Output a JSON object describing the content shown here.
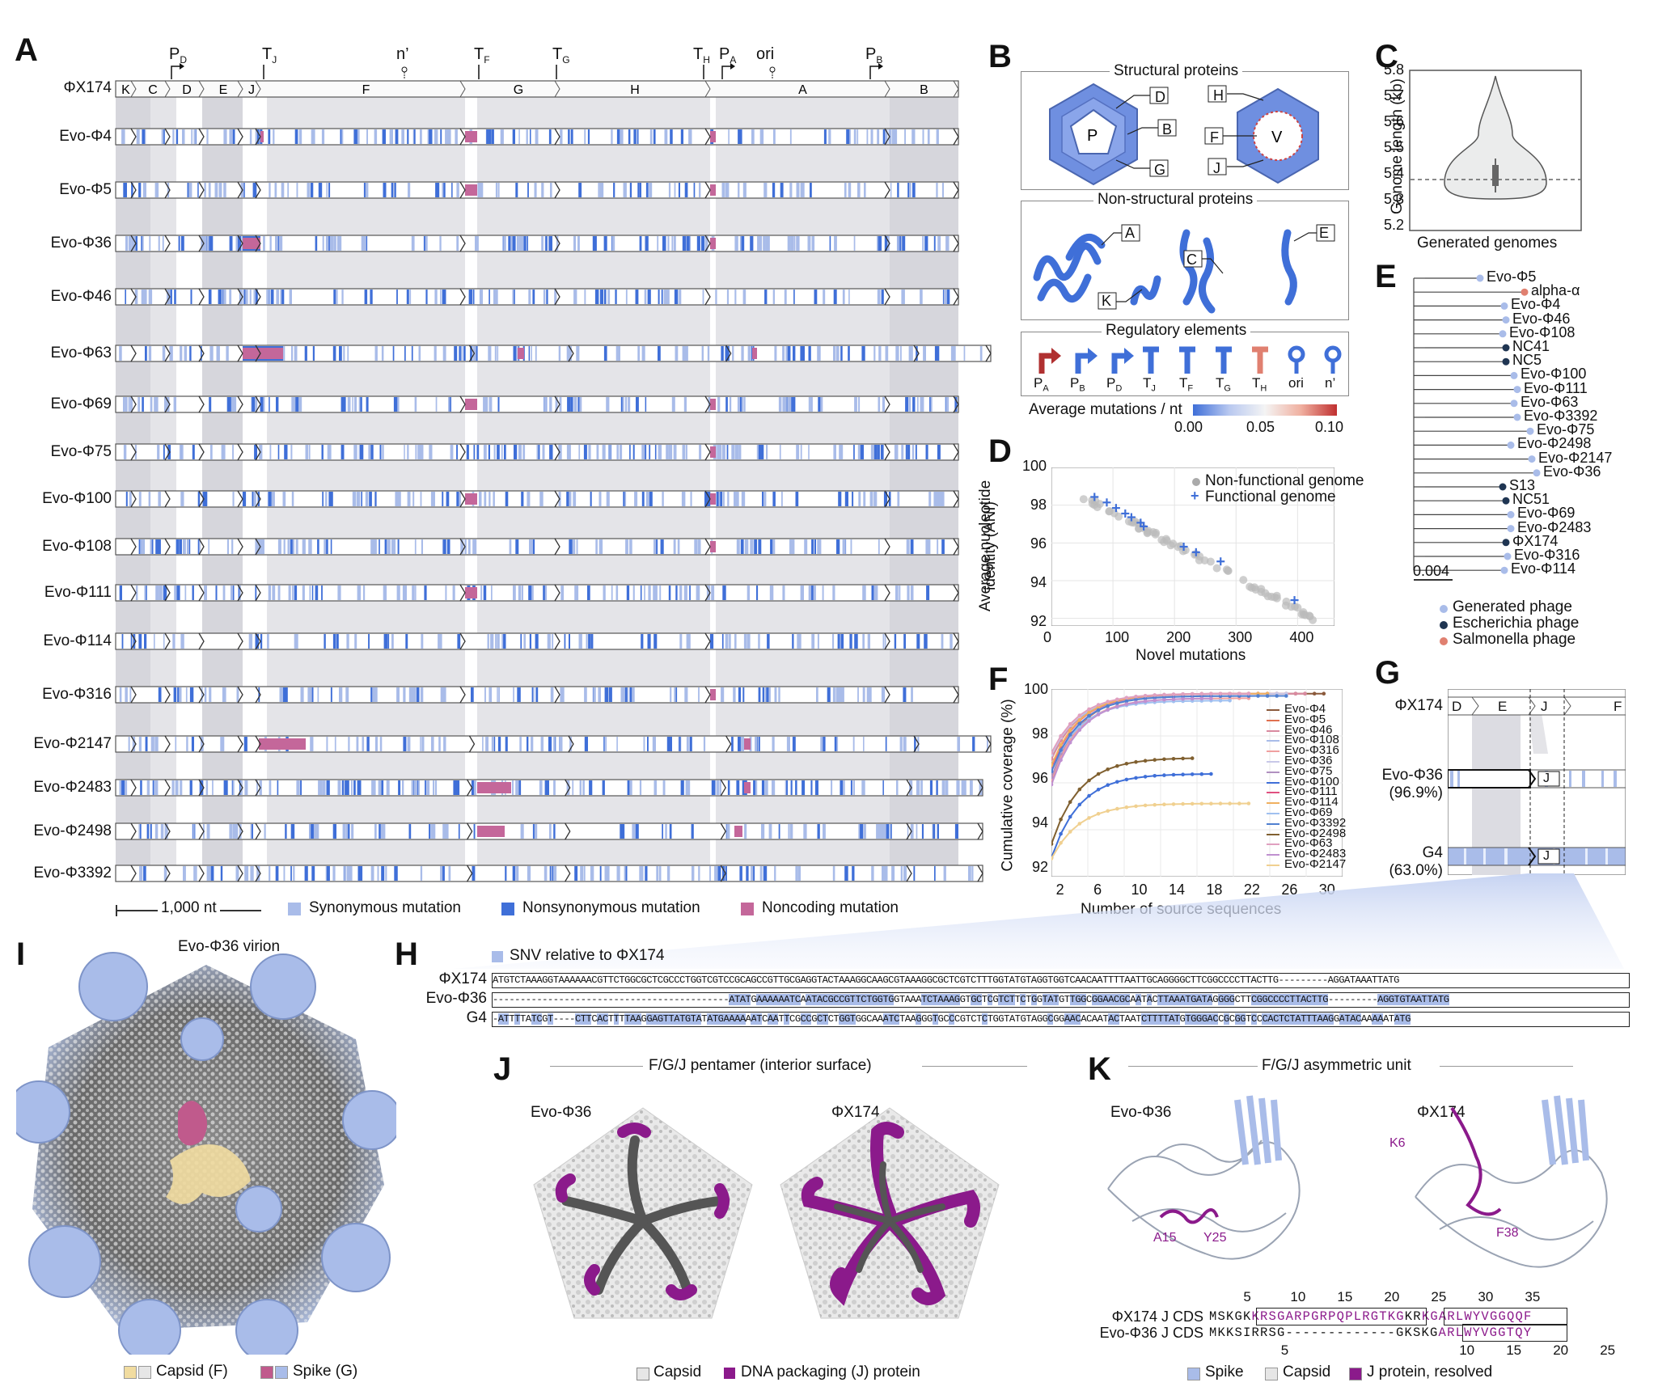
{
  "panels": {
    "A": "A",
    "B": "B",
    "C": "C",
    "D": "D",
    "E": "E",
    "F": "F",
    "G": "G",
    "H": "H",
    "I": "I",
    "J": "J",
    "K": "K"
  },
  "panelA": {
    "reference": "ΦX174",
    "ref_genes": [
      "K",
      "C",
      "D",
      "E",
      "J",
      "F",
      "G",
      "H",
      "A",
      "B"
    ],
    "elements": [
      "P",
      "D",
      "T",
      "J",
      "n’",
      "T",
      "F",
      "T",
      "G",
      "T",
      "H",
      "P",
      "A",
      "ori",
      "P",
      "B"
    ],
    "element_labels": {
      "pd": "P",
      "pd_sub": "D",
      "tj": "T",
      "tj_sub": "J",
      "nprime": "n’",
      "tf": "T",
      "tf_sub": "F",
      "tg": "T",
      "tg_sub": "G",
      "th": "T",
      "th_sub": "H",
      "pa": "P",
      "pa_sub": "A",
      "ori": "ori",
      "pb": "P",
      "pb_sub": "B"
    },
    "rows": [
      "Evo-Φ4",
      "Evo-Φ5",
      "Evo-Φ36",
      "Evo-Φ46",
      "Evo-Φ63",
      "Evo-Φ69",
      "Evo-Φ75",
      "Evo-Φ100",
      "Evo-Φ108",
      "Evo-Φ111",
      "Evo-Φ114",
      "Evo-Φ316",
      "Evo-Φ2147",
      "Evo-Φ2483",
      "Evo-Φ2498",
      "Evo-Φ3392"
    ],
    "scale_label": "1,000 nt",
    "legend": [
      {
        "label": "Synonymous mutation",
        "color": "#a9bce9"
      },
      {
        "label": "Nonsynonymous mutation",
        "color": "#3f6fd8"
      },
      {
        "label": "Noncoding mutation",
        "color": "#c4679a"
      }
    ]
  },
  "panelB": {
    "structural_title": "Structural proteins",
    "structural_labels": [
      "D",
      "B",
      "G",
      "H",
      "F",
      "J",
      "P",
      "V"
    ],
    "nonstructural_title": "Non-structural proteins",
    "nonstructural_labels": [
      "A",
      "C",
      "E",
      "K"
    ],
    "regulatory_title": "Regulatory elements",
    "regulatory_labels": [
      {
        "main": "P",
        "sub": "A"
      },
      {
        "main": "P",
        "sub": "B"
      },
      {
        "main": "P",
        "sub": "D"
      },
      {
        "main": "T",
        "sub": "J"
      },
      {
        "main": "T",
        "sub": "F"
      },
      {
        "main": "T",
        "sub": "G"
      },
      {
        "main": "T",
        "sub": "H"
      },
      {
        "main": "ori",
        "sub": ""
      },
      {
        "main": "n’",
        "sub": ""
      }
    ],
    "colorbar_title": "Average mutations / nt",
    "colorbar_ticks": [
      "0.00",
      "0.05",
      "0.10"
    ]
  },
  "panelC": {
    "ylabel": "Genome length (kb)",
    "yticks": [
      "5.8",
      "5.7",
      "5.6",
      "5.5",
      "5.4",
      "5.3",
      "5.2"
    ],
    "xlabel": "Generated genomes"
  },
  "panelD": {
    "ylabel_line1": "Average nucleotide",
    "ylabel_line2": "identity (ANI)",
    "xlabel": "Novel mutations",
    "xticks": [
      "0",
      "100",
      "200",
      "300",
      "400"
    ],
    "yticks": [
      "100",
      "98",
      "96",
      "94",
      "92"
    ],
    "legend": [
      "Non-functional genome",
      "Functional genome"
    ]
  },
  "panelE": {
    "scale": "0.004",
    "leaves": [
      "Evo-Φ5",
      "alpha-α",
      "Evo-Φ4",
      "Evo-Φ46",
      "Evo-Φ108",
      "NC41",
      "NC5",
      "Evo-Φ100",
      "Evo-Φ111",
      "Evo-Φ63",
      "Evo-Φ3392",
      "Evo-Φ75",
      "Evo-Φ2498",
      "Evo-Φ2147",
      "Evo-Φ36",
      "S13",
      "NC51",
      "Evo-Φ69",
      "Evo-Φ2483",
      "ΦX174",
      "Evo-Φ316",
      "Evo-Φ114"
    ],
    "legend": [
      {
        "label": "Generated phage",
        "color": "#a9bce9"
      },
      {
        "label": "Escherichia phage",
        "color": "#1f3552"
      },
      {
        "label": "Salmonella phage",
        "color": "#e08070"
      }
    ]
  },
  "panelF": {
    "ylabel": "Cumulative coverage (%)",
    "xlabel": "Number of source sequences",
    "xticks": [
      "2",
      "6",
      "10",
      "14",
      "18",
      "22",
      "26",
      "30"
    ],
    "yticks": [
      "100",
      "98",
      "96",
      "94",
      "92"
    ],
    "legend": [
      "Evo-Φ4",
      "Evo-Φ5",
      "Evo-Φ46",
      "Evo-Φ108",
      "Evo-Φ316",
      "Evo-Φ36",
      "Evo-Φ75",
      "Evo-Φ100",
      "Evo-Φ111",
      "Evo-Φ114",
      "Evo-Φ69",
      "Evo-Φ3392",
      "Evo-Φ2498",
      "Evo-Φ63",
      "Evo-Φ2483",
      "Evo-Φ2147"
    ]
  },
  "panelG": {
    "rows": [
      {
        "label": "ΦX174",
        "sub": ""
      },
      {
        "label": "Evo-Φ36",
        "sub": "(96.9%)"
      },
      {
        "label": "G4",
        "sub": "(63.0%)"
      }
    ],
    "genes": [
      "D",
      "E",
      "J",
      "F"
    ]
  },
  "panelH": {
    "legend": "SNV relative to ΦX174",
    "rows": [
      {
        "label": "ΦX174",
        "seq": "ATGTCTAAAGGTAAAAAACGTTCTGGCGCTCGCCCTGGTCGTCCGCAGCCGTTGCGAGGTACTAAAGGCAAGCGTAAAGGCGCTCGTCTTTGGTATGTAGGTGGTCAACAATTTTAATTGCAGGGGCTTCGGCCCCTTACTTG---------AGGATAAATTATG"
      },
      {
        "label": "Evo-Φ36",
        "seq": "-------------------------------------------ATATGAAAAAATCAATACGCCGTTCTGGTGGTAAATCTAAAGGTGCTCGTCTTCTGGTATGTTGGCGGAACGCAATACTTAAATGATAGGGGCTTCGGCCCCTTACTTG---------AGGTGTAATTATG"
      },
      {
        "label": "G4",
        "seq": "-ATTTTATCGT----CTTCACTTTTAAGGAGTTATGTATATGAAAAAATCAATTCGCCGCTCTGGTGGCAAATCTAAGGGTGCCCGTCTCTGGTATGTAGGCGGAACACAATACTAATCTTTTATGTGGGACCGCGGTCCCACTCTATTTAAGGATACAAAAATATG"
      }
    ]
  },
  "panelI": {
    "title": "Evo-Φ36 virion",
    "legend": [
      {
        "label": "Capsid (F)",
        "colors": [
          "#f1dca0",
          "#e6e6e6"
        ]
      },
      {
        "label": "Spike (G)",
        "colors": [
          "#c05a8c",
          "#a9bce9"
        ]
      }
    ]
  },
  "panelJ": {
    "title": "F/G/J pentamer (interior surface)",
    "left": "Evo-Φ36",
    "right": "ΦX174",
    "legend": [
      {
        "label": "Capsid",
        "color": "#e6e6e6"
      },
      {
        "label": "DNA packaging (J) protein",
        "color": "#8b1a8b"
      }
    ]
  },
  "panelK": {
    "title": "F/G/J asymmetric unit",
    "left": "Evo-Φ36",
    "right": "ΦX174",
    "left_residues": [
      "A15",
      "Y25"
    ],
    "right_residues": [
      "K6",
      "F38"
    ],
    "top_ticks": [
      "5",
      "10",
      "15",
      "20",
      "25",
      "30",
      "35"
    ],
    "bottom_ticks": [
      "5",
      "10",
      "15",
      "20",
      "25"
    ],
    "seq_rows": [
      {
        "label": "ΦX174 J CDS",
        "seq": "MSKGKKRSGARPGRPQPLRGTKGKRKGARLWYVGGQQF"
      },
      {
        "label": "Evo-Φ36 J CDS",
        "seq": "MKKSIRRSG-------------GKSKGARLWYVGGTQY"
      }
    ],
    "legend": [
      {
        "label": "Spike",
        "color": "#a9bce9"
      },
      {
        "label": "Capsid",
        "color": "#e6e6e6"
      },
      {
        "label": "J protein, resolved",
        "color": "#8b1a8b"
      }
    ]
  },
  "colors": {
    "syn": "#a9bce9",
    "nonsyn": "#3f6fd8",
    "noncoding": "#c4679a",
    "band": "#e4e4e8",
    "bandDark": "#d6d6dc"
  }
}
